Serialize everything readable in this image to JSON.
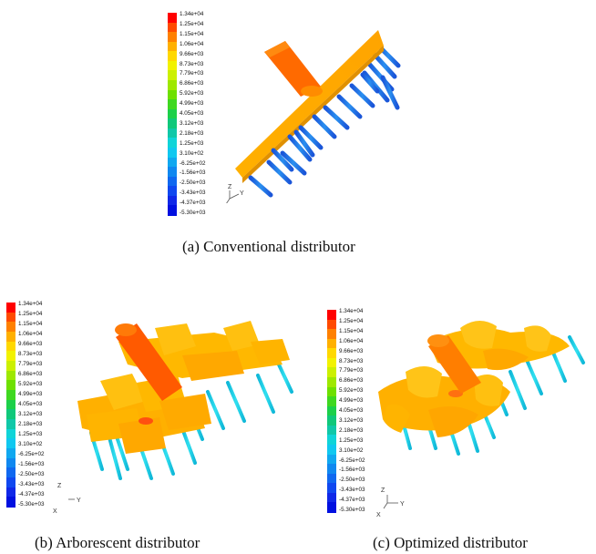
{
  "colorbar": {
    "ticks": [
      "1.34e+04",
      "1.25e+04",
      "1.15e+04",
      "1.06e+04",
      "9.66e+03",
      "8.73e+03",
      "7.79e+03",
      "6.86e+03",
      "5.92e+03",
      "4.99e+03",
      "4.05e+03",
      "3.12e+03",
      "2.18e+03",
      "1.25e+03",
      "3.10e+02",
      "-6.25e+02",
      "-1.56e+03",
      "-2.50e+03",
      "-3.43e+03",
      "-4.37e+03",
      "-5.30e+03"
    ],
    "colors": [
      "#ff0000",
      "#ff4a00",
      "#ff8000",
      "#ffb000",
      "#ffd800",
      "#f2f200",
      "#ccf000",
      "#9ee800",
      "#6ee000",
      "#3fd820",
      "#1cd04a",
      "#10c87a",
      "#10c8a8",
      "#10d4d8",
      "#10c8f0",
      "#10a8f0",
      "#1088f0",
      "#1068f0",
      "#1048f0",
      "#1028e8",
      "#0010e0"
    ]
  },
  "axes": {
    "x": "X",
    "y": "Y",
    "z": "Z"
  },
  "panels": [
    {
      "id": "a",
      "caption": "(a) Conventional distributor"
    },
    {
      "id": "b",
      "caption": "(b) Arborescent distributor"
    },
    {
      "id": "c",
      "caption": "(c) Optimized distributor"
    }
  ]
}
